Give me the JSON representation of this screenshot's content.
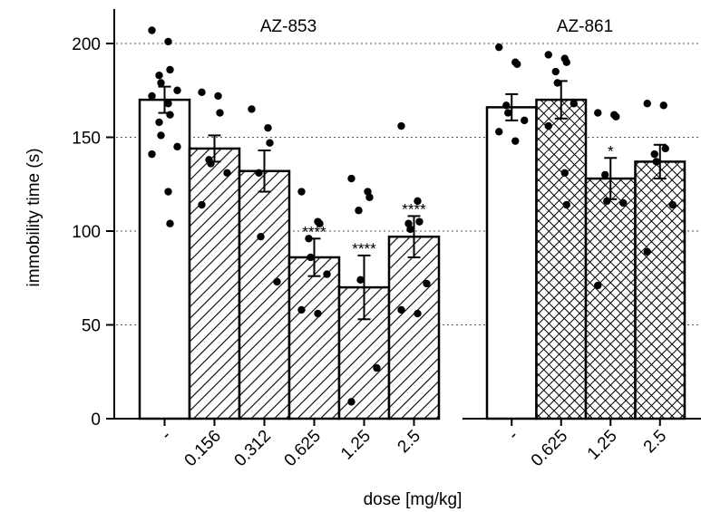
{
  "chart_data": {
    "type": "bar",
    "ylabel": "immobility time (s)",
    "xlabel": "dose [mg/kg]",
    "ylim": [
      0,
      220
    ],
    "yticks": [
      0,
      50,
      100,
      150,
      200
    ],
    "grid": "horizontal dotted",
    "groups": [
      {
        "title": "AZ-853",
        "bars": [
          {
            "dose": "-",
            "mean": 170,
            "sem": 7,
            "pattern": "none",
            "sig": "",
            "points": [
              207,
              201,
              186,
              183,
              179,
              175,
              172,
              168,
              162,
              158,
              151,
              145,
              141,
              121,
              104
            ]
          },
          {
            "dose": "0.156",
            "mean": 144,
            "sem": 7,
            "pattern": "diagonal",
            "sig": "",
            "points": [
              174,
              172,
              163,
              138,
              136,
              131,
              114
            ]
          },
          {
            "dose": "0.312",
            "mean": 132,
            "sem": 11,
            "pattern": "diagonal",
            "sig": "",
            "points": [
              165,
              155,
              147,
              131,
              97,
              73
            ]
          },
          {
            "dose": "0.625",
            "mean": 86,
            "sem": 10,
            "pattern": "diagonal",
            "sig": "****",
            "points": [
              121,
              105,
              104,
              96,
              86,
              77,
              58,
              56
            ]
          },
          {
            "dose": "1.25",
            "mean": 70,
            "sem": 17,
            "pattern": "diagonal",
            "sig": "****",
            "points": [
              128,
              121,
              118,
              111,
              74,
              27,
              9
            ]
          },
          {
            "dose": "2.5",
            "mean": 97,
            "sem": 11,
            "pattern": "diagonal",
            "sig": "****",
            "points": [
              156,
              116,
              105,
              104,
              101,
              72,
              58,
              56
            ]
          }
        ]
      },
      {
        "title": "AZ-861",
        "bars": [
          {
            "dose": "-",
            "mean": 166,
            "sem": 7,
            "pattern": "none",
            "sig": "",
            "points": [
              198,
              190,
              189,
              167,
              163,
              159,
              153,
              148
            ]
          },
          {
            "dose": "0.625",
            "mean": 170,
            "sem": 10,
            "pattern": "crosshatch",
            "sig": "",
            "points": [
              194,
              192,
              190,
              185,
              179,
              168,
              156,
              131,
              114
            ]
          },
          {
            "dose": "1.25",
            "mean": 128,
            "sem": 11,
            "pattern": "crosshatch",
            "sig": "*",
            "points": [
              163,
              162,
              161,
              130,
              116,
              115,
              71
            ]
          },
          {
            "dose": "2.5",
            "mean": 137,
            "sem": 9,
            "pattern": "crosshatch",
            "sig": "",
            "points": [
              168,
              167,
              144,
              141,
              137,
              114,
              89
            ]
          }
        ]
      }
    ]
  }
}
